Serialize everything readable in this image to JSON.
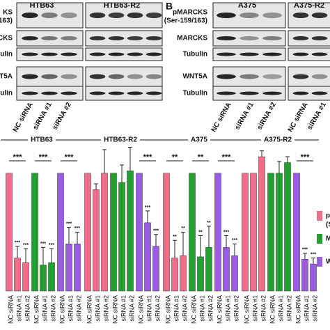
{
  "panel_a": {
    "column_headers": [
      "HTB63",
      "HTB63-R2"
    ],
    "row_labels": [
      "KS",
      "/163)",
      "RCKS",
      "Tubulin",
      "VNT5A",
      "Tubulin"
    ],
    "lane_labels": [
      "NC siRNA",
      "siRNA #1",
      "siRNA #2"
    ]
  },
  "panel_b": {
    "letter": "B",
    "column_headers": [
      "A375",
      "A375-R2"
    ],
    "row_labels": [
      "pMARCKS",
      "(Ser-159/163)",
      "MARCKS",
      "Tubulin",
      "WNT5A",
      "Tubulin"
    ],
    "lane_labels": [
      "NC siRNA",
      "siRNA #1",
      "siRNA #2"
    ]
  },
  "chart_data": {
    "type": "bar",
    "cell_lines": [
      "HTB63",
      "HTB63-R2",
      "A375",
      "A375-R2"
    ],
    "conditions": [
      "NC siRNA",
      "siRNA #1",
      "siRNA #2"
    ],
    "ylim": [
      0,
      1.3
    ],
    "series": [
      {
        "name": "p",
        "name_2": "(S",
        "color": "#f06e8a",
        "values": [
          1,
          0.28,
          0.24,
          1,
          0.86,
          1.0,
          1,
          0.28,
          0.3,
          1,
          1,
          1.14
        ],
        "errors": [
          0,
          0.1,
          0.12,
          0,
          0.05,
          0.2,
          0,
          0.15,
          0.2,
          0,
          0,
          0.05
        ],
        "stars": [
          null,
          "***",
          "***",
          null,
          null,
          null,
          null,
          "**",
          "**",
          null,
          null,
          null
        ],
        "brackets": [
          "***",
          null,
          "**",
          null
        ]
      },
      {
        "name": "M",
        "color": "#22a030",
        "values": [
          1,
          0.22,
          0.24,
          1,
          0.92,
          1.02,
          1,
          0.29,
          0.37,
          1,
          1,
          1.09
        ],
        "errors": [
          0,
          0.15,
          0.12,
          0,
          0.15,
          0.2,
          0,
          0.18,
          0.18,
          0,
          0.1,
          0.05
        ],
        "stars": [
          null,
          "***",
          "***",
          null,
          null,
          null,
          null,
          "**",
          "**",
          null,
          null,
          null
        ],
        "brackets": [
          "***",
          null,
          "**",
          null
        ]
      },
      {
        "name": "W",
        "color": "#9a5ce0",
        "values": [
          1,
          0.4,
          0.4,
          1,
          0.58,
          0.38,
          1,
          0.37,
          0.3,
          1,
          0.27,
          0.23
        ],
        "errors": [
          0,
          0.14,
          0.1,
          0,
          0.1,
          0.1,
          0,
          0.1,
          0.1,
          0,
          0.05,
          0.05
        ],
        "stars": [
          null,
          "***",
          "***",
          null,
          "***",
          "***",
          null,
          "***",
          "***",
          null,
          "***",
          "***"
        ],
        "brackets": [
          "***",
          "***",
          "***",
          "***"
        ]
      }
    ]
  }
}
